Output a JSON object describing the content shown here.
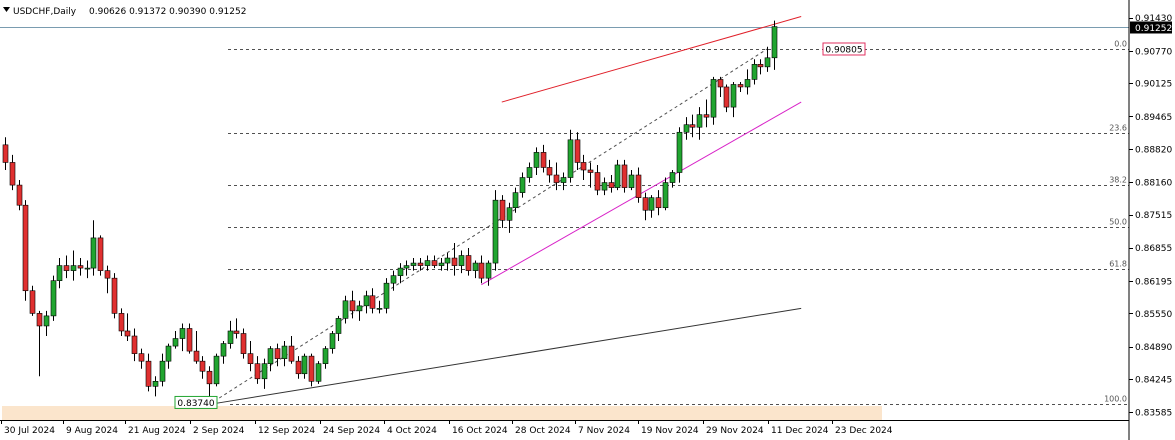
{
  "title": {
    "symbol_timeframe": "USDCHF,Daily",
    "ohlc": "0.90626 0.91372 0.90390 0.91252"
  },
  "icons": {
    "menu": "triangle-down-icon"
  },
  "colors": {
    "background": "#ffffff",
    "bull": "#21a530",
    "bear": "#e03030",
    "bid_line": "#7a9cb0",
    "upper_channel": "#e0202a",
    "lower_channel": "#d822c8",
    "trend_line": "#333333",
    "fib_line": "#505050",
    "high_label_border": "#e03060",
    "low_label_border": "#21a530",
    "price_tag_bg": "#000000"
  },
  "labels": {
    "high_price": "0.90805",
    "low_price": "0.83740",
    "current_price": "0.91252"
  },
  "chart_data": {
    "type": "candlestick",
    "y_axis_ticks": [
      "0.91430",
      "0.90770",
      "0.90125",
      "0.89465",
      "0.88820",
      "0.88160",
      "0.87515",
      "0.86855",
      "0.86195",
      "0.85550",
      "0.84890",
      "0.84245",
      "0.83585"
    ],
    "ylim": [
      0.8355,
      0.9158
    ],
    "x_axis_ticks": [
      "30 Jul 2024",
      "9 Aug 2024",
      "21 Aug 2024",
      "2 Sep 2024",
      "12 Sep 2024",
      "24 Sep 2024",
      "4 Oct 2024",
      "16 Oct 2024",
      "28 Oct 2024",
      "7 Nov 2024",
      "19 Nov 2024",
      "29 Nov 2024",
      "11 Dec 2024",
      "23 Dec 2024"
    ],
    "fibonacci_levels": [
      {
        "label": "0.0",
        "price": 0.90805
      },
      {
        "label": "23.6",
        "price": 0.89137
      },
      {
        "label": "38.2",
        "price": 0.88106
      },
      {
        "label": "50.0",
        "price": 0.87273
      },
      {
        "label": "61.8",
        "price": 0.86439
      },
      {
        "label": "100.0",
        "price": 0.8374
      }
    ],
    "candles": [
      {
        "date": "2024-07-29",
        "o": 0.889,
        "h": 0.8905,
        "l": 0.884,
        "c": 0.8855
      },
      {
        "date": "2024-07-30",
        "o": 0.8855,
        "h": 0.887,
        "l": 0.88,
        "c": 0.881
      },
      {
        "date": "2024-07-31",
        "o": 0.881,
        "h": 0.882,
        "l": 0.876,
        "c": 0.877
      },
      {
        "date": "2024-08-01",
        "o": 0.877,
        "h": 0.878,
        "l": 0.858,
        "c": 0.86
      },
      {
        "date": "2024-08-02",
        "o": 0.86,
        "h": 0.861,
        "l": 0.855,
        "c": 0.8555
      },
      {
        "date": "2024-08-05",
        "o": 0.8555,
        "h": 0.856,
        "l": 0.843,
        "c": 0.853
      },
      {
        "date": "2024-08-06",
        "o": 0.853,
        "h": 0.856,
        "l": 0.851,
        "c": 0.855
      },
      {
        "date": "2024-08-07",
        "o": 0.855,
        "h": 0.863,
        "l": 0.854,
        "c": 0.862
      },
      {
        "date": "2024-08-08",
        "o": 0.862,
        "h": 0.8665,
        "l": 0.8605,
        "c": 0.865
      },
      {
        "date": "2024-08-09",
        "o": 0.865,
        "h": 0.867,
        "l": 0.8625,
        "c": 0.864
      },
      {
        "date": "2024-08-12",
        "o": 0.864,
        "h": 0.868,
        "l": 0.862,
        "c": 0.865
      },
      {
        "date": "2024-08-13",
        "o": 0.865,
        "h": 0.8665,
        "l": 0.863,
        "c": 0.8645
      },
      {
        "date": "2024-08-14",
        "o": 0.8645,
        "h": 0.866,
        "l": 0.8625,
        "c": 0.8645
      },
      {
        "date": "2024-08-15",
        "o": 0.8645,
        "h": 0.874,
        "l": 0.863,
        "c": 0.8705
      },
      {
        "date": "2024-08-16",
        "o": 0.8705,
        "h": 0.871,
        "l": 0.863,
        "c": 0.864
      },
      {
        "date": "2024-08-19",
        "o": 0.864,
        "h": 0.865,
        "l": 0.8595,
        "c": 0.8625
      },
      {
        "date": "2024-08-20",
        "o": 0.8625,
        "h": 0.8635,
        "l": 0.8545,
        "c": 0.8555
      },
      {
        "date": "2024-08-21",
        "o": 0.8555,
        "h": 0.8565,
        "l": 0.851,
        "c": 0.852
      },
      {
        "date": "2024-08-22",
        "o": 0.852,
        "h": 0.8555,
        "l": 0.85,
        "c": 0.851
      },
      {
        "date": "2024-08-23",
        "o": 0.851,
        "h": 0.8525,
        "l": 0.846,
        "c": 0.8475
      },
      {
        "date": "2024-08-26",
        "o": 0.8475,
        "h": 0.8485,
        "l": 0.8445,
        "c": 0.846
      },
      {
        "date": "2024-08-27",
        "o": 0.846,
        "h": 0.8475,
        "l": 0.84,
        "c": 0.841
      },
      {
        "date": "2024-08-28",
        "o": 0.841,
        "h": 0.843,
        "l": 0.839,
        "c": 0.842
      },
      {
        "date": "2024-08-29",
        "o": 0.842,
        "h": 0.8475,
        "l": 0.841,
        "c": 0.846
      },
      {
        "date": "2024-08-30",
        "o": 0.846,
        "h": 0.8495,
        "l": 0.8445,
        "c": 0.849
      },
      {
        "date": "2024-09-02",
        "o": 0.849,
        "h": 0.852,
        "l": 0.8485,
        "c": 0.8505
      },
      {
        "date": "2024-09-03",
        "o": 0.8505,
        "h": 0.8535,
        "l": 0.848,
        "c": 0.8525
      },
      {
        "date": "2024-09-04",
        "o": 0.8525,
        "h": 0.8535,
        "l": 0.8475,
        "c": 0.848
      },
      {
        "date": "2024-09-05",
        "o": 0.848,
        "h": 0.852,
        "l": 0.8455,
        "c": 0.846
      },
      {
        "date": "2024-09-06",
        "o": 0.846,
        "h": 0.847,
        "l": 0.8425,
        "c": 0.844
      },
      {
        "date": "2024-09-09",
        "o": 0.844,
        "h": 0.845,
        "l": 0.8374,
        "c": 0.8415
      },
      {
        "date": "2024-09-10",
        "o": 0.8415,
        "h": 0.8475,
        "l": 0.841,
        "c": 0.847
      },
      {
        "date": "2024-09-11",
        "o": 0.847,
        "h": 0.85,
        "l": 0.8455,
        "c": 0.8495
      },
      {
        "date": "2024-09-12",
        "o": 0.8495,
        "h": 0.854,
        "l": 0.8485,
        "c": 0.852
      },
      {
        "date": "2024-09-13",
        "o": 0.852,
        "h": 0.8545,
        "l": 0.8505,
        "c": 0.8515
      },
      {
        "date": "2024-09-16",
        "o": 0.8515,
        "h": 0.8525,
        "l": 0.8465,
        "c": 0.8475
      },
      {
        "date": "2024-09-17",
        "o": 0.8475,
        "h": 0.85,
        "l": 0.844,
        "c": 0.8455
      },
      {
        "date": "2024-09-18",
        "o": 0.8455,
        "h": 0.847,
        "l": 0.8415,
        "c": 0.8425
      },
      {
        "date": "2024-09-19",
        "o": 0.8425,
        "h": 0.8465,
        "l": 0.8405,
        "c": 0.8455
      },
      {
        "date": "2024-09-20",
        "o": 0.8455,
        "h": 0.849,
        "l": 0.844,
        "c": 0.8485
      },
      {
        "date": "2024-09-23",
        "o": 0.8485,
        "h": 0.8495,
        "l": 0.845,
        "c": 0.8465
      },
      {
        "date": "2024-09-24",
        "o": 0.8465,
        "h": 0.85,
        "l": 0.845,
        "c": 0.849
      },
      {
        "date": "2024-09-25",
        "o": 0.849,
        "h": 0.851,
        "l": 0.8455,
        "c": 0.846
      },
      {
        "date": "2024-09-26",
        "o": 0.846,
        "h": 0.847,
        "l": 0.8425,
        "c": 0.8435
      },
      {
        "date": "2024-09-27",
        "o": 0.8435,
        "h": 0.8475,
        "l": 0.8425,
        "c": 0.847
      },
      {
        "date": "2024-09-30",
        "o": 0.847,
        "h": 0.8475,
        "l": 0.841,
        "c": 0.842
      },
      {
        "date": "2024-10-01",
        "o": 0.842,
        "h": 0.846,
        "l": 0.8415,
        "c": 0.8455
      },
      {
        "date": "2024-10-02",
        "o": 0.8455,
        "h": 0.849,
        "l": 0.8445,
        "c": 0.8485
      },
      {
        "date": "2024-10-03",
        "o": 0.8485,
        "h": 0.852,
        "l": 0.8475,
        "c": 0.8515
      },
      {
        "date": "2024-10-04",
        "o": 0.8515,
        "h": 0.855,
        "l": 0.85,
        "c": 0.8545
      },
      {
        "date": "2024-10-07",
        "o": 0.8545,
        "h": 0.859,
        "l": 0.8535,
        "c": 0.858
      },
      {
        "date": "2024-10-08",
        "o": 0.858,
        "h": 0.86,
        "l": 0.8545,
        "c": 0.856
      },
      {
        "date": "2024-10-09",
        "o": 0.856,
        "h": 0.858,
        "l": 0.854,
        "c": 0.857
      },
      {
        "date": "2024-10-10",
        "o": 0.857,
        "h": 0.86,
        "l": 0.8555,
        "c": 0.859
      },
      {
        "date": "2024-10-11",
        "o": 0.859,
        "h": 0.8605,
        "l": 0.8555,
        "c": 0.8565
      },
      {
        "date": "2024-10-14",
        "o": 0.8565,
        "h": 0.858,
        "l": 0.8555,
        "c": 0.8565
      },
      {
        "date": "2024-10-15",
        "o": 0.8565,
        "h": 0.8625,
        "l": 0.8555,
        "c": 0.8615
      },
      {
        "date": "2024-10-16",
        "o": 0.8615,
        "h": 0.864,
        "l": 0.86,
        "c": 0.863
      },
      {
        "date": "2024-10-17",
        "o": 0.863,
        "h": 0.8655,
        "l": 0.8615,
        "c": 0.8645
      },
      {
        "date": "2024-10-18",
        "o": 0.8645,
        "h": 0.866,
        "l": 0.863,
        "c": 0.865
      },
      {
        "date": "2024-10-21",
        "o": 0.865,
        "h": 0.8665,
        "l": 0.864,
        "c": 0.8655
      },
      {
        "date": "2024-10-22",
        "o": 0.8655,
        "h": 0.8665,
        "l": 0.864,
        "c": 0.865
      },
      {
        "date": "2024-10-23",
        "o": 0.865,
        "h": 0.867,
        "l": 0.864,
        "c": 0.866
      },
      {
        "date": "2024-10-24",
        "o": 0.866,
        "h": 0.867,
        "l": 0.8645,
        "c": 0.865
      },
      {
        "date": "2024-10-25",
        "o": 0.865,
        "h": 0.8665,
        "l": 0.864,
        "c": 0.8655
      },
      {
        "date": "2024-10-28",
        "o": 0.8655,
        "h": 0.8675,
        "l": 0.864,
        "c": 0.8665
      },
      {
        "date": "2024-10-29",
        "o": 0.8665,
        "h": 0.8695,
        "l": 0.863,
        "c": 0.865
      },
      {
        "date": "2024-10-30",
        "o": 0.865,
        "h": 0.868,
        "l": 0.8635,
        "c": 0.867
      },
      {
        "date": "2024-10-31",
        "o": 0.867,
        "h": 0.8685,
        "l": 0.863,
        "c": 0.864
      },
      {
        "date": "2024-11-01",
        "o": 0.864,
        "h": 0.866,
        "l": 0.8625,
        "c": 0.8655
      },
      {
        "date": "2024-11-04",
        "o": 0.8655,
        "h": 0.867,
        "l": 0.8615,
        "c": 0.8625
      },
      {
        "date": "2024-11-05",
        "o": 0.8625,
        "h": 0.866,
        "l": 0.861,
        "c": 0.8655
      },
      {
        "date": "2024-11-06",
        "o": 0.8655,
        "h": 0.88,
        "l": 0.864,
        "c": 0.878
      },
      {
        "date": "2024-11-07",
        "o": 0.878,
        "h": 0.879,
        "l": 0.8725,
        "c": 0.874
      },
      {
        "date": "2024-11-08",
        "o": 0.874,
        "h": 0.8775,
        "l": 0.8715,
        "c": 0.8765
      },
      {
        "date": "2024-11-11",
        "o": 0.8765,
        "h": 0.8805,
        "l": 0.8755,
        "c": 0.8795
      },
      {
        "date": "2024-11-12",
        "o": 0.8795,
        "h": 0.8835,
        "l": 0.8785,
        "c": 0.8825
      },
      {
        "date": "2024-11-13",
        "o": 0.8825,
        "h": 0.8855,
        "l": 0.8815,
        "c": 0.8845
      },
      {
        "date": "2024-11-14",
        "o": 0.8845,
        "h": 0.8885,
        "l": 0.883,
        "c": 0.8875
      },
      {
        "date": "2024-11-15",
        "o": 0.8875,
        "h": 0.889,
        "l": 0.8835,
        "c": 0.8845
      },
      {
        "date": "2024-11-18",
        "o": 0.8845,
        "h": 0.886,
        "l": 0.8815,
        "c": 0.883
      },
      {
        "date": "2024-11-19",
        "o": 0.883,
        "h": 0.8855,
        "l": 0.88,
        "c": 0.8815
      },
      {
        "date": "2024-11-20",
        "o": 0.8815,
        "h": 0.8835,
        "l": 0.88,
        "c": 0.8825
      },
      {
        "date": "2024-11-21",
        "o": 0.8825,
        "h": 0.892,
        "l": 0.8815,
        "c": 0.89
      },
      {
        "date": "2024-11-22",
        "o": 0.89,
        "h": 0.8915,
        "l": 0.884,
        "c": 0.8855
      },
      {
        "date": "2024-11-25",
        "o": 0.8855,
        "h": 0.887,
        "l": 0.882,
        "c": 0.884
      },
      {
        "date": "2024-11-26",
        "o": 0.884,
        "h": 0.8855,
        "l": 0.8805,
        "c": 0.8835
      },
      {
        "date": "2024-11-27",
        "o": 0.8835,
        "h": 0.885,
        "l": 0.879,
        "c": 0.88
      },
      {
        "date": "2024-11-28",
        "o": 0.88,
        "h": 0.8825,
        "l": 0.879,
        "c": 0.8815
      },
      {
        "date": "2024-11-29",
        "o": 0.8815,
        "h": 0.883,
        "l": 0.8795,
        "c": 0.8805
      },
      {
        "date": "2024-12-02",
        "o": 0.8805,
        "h": 0.886,
        "l": 0.88,
        "c": 0.885
      },
      {
        "date": "2024-12-03",
        "o": 0.885,
        "h": 0.886,
        "l": 0.8795,
        "c": 0.8805
      },
      {
        "date": "2024-12-04",
        "o": 0.8805,
        "h": 0.884,
        "l": 0.88,
        "c": 0.883
      },
      {
        "date": "2024-12-05",
        "o": 0.883,
        "h": 0.8845,
        "l": 0.8775,
        "c": 0.8785
      },
      {
        "date": "2024-12-06",
        "o": 0.8785,
        "h": 0.8795,
        "l": 0.874,
        "c": 0.876
      },
      {
        "date": "2024-12-09",
        "o": 0.876,
        "h": 0.879,
        "l": 0.8745,
        "c": 0.8785
      },
      {
        "date": "2024-12-10",
        "o": 0.8785,
        "h": 0.88,
        "l": 0.875,
        "c": 0.8765
      },
      {
        "date": "2024-12-11",
        "o": 0.8765,
        "h": 0.8825,
        "l": 0.876,
        "c": 0.8815
      },
      {
        "date": "2024-12-12",
        "o": 0.8815,
        "h": 0.884,
        "l": 0.8805,
        "c": 0.8835
      },
      {
        "date": "2024-12-13",
        "o": 0.8835,
        "h": 0.8925,
        "l": 0.8815,
        "c": 0.8915
      },
      {
        "date": "2024-12-16",
        "o": 0.8915,
        "h": 0.8945,
        "l": 0.89,
        "c": 0.893
      },
      {
        "date": "2024-12-17",
        "o": 0.893,
        "h": 0.895,
        "l": 0.8905,
        "c": 0.8925
      },
      {
        "date": "2024-12-18",
        "o": 0.8925,
        "h": 0.8965,
        "l": 0.89,
        "c": 0.895
      },
      {
        "date": "2024-12-19",
        "o": 0.895,
        "h": 0.898,
        "l": 0.8925,
        "c": 0.8945
      },
      {
        "date": "2024-12-20",
        "o": 0.8945,
        "h": 0.9025,
        "l": 0.893,
        "c": 0.902
      },
      {
        "date": "2024-12-23",
        "o": 0.902,
        "h": 0.9025,
        "l": 0.8985,
        "c": 0.9005
      },
      {
        "date": "2024-12-24",
        "o": 0.9005,
        "h": 0.901,
        "l": 0.8955,
        "c": 0.8965
      },
      {
        "date": "2024-12-26",
        "o": 0.8965,
        "h": 0.9015,
        "l": 0.8945,
        "c": 0.901
      },
      {
        "date": "2024-12-27",
        "o": 0.901,
        "h": 0.9015,
        "l": 0.8995,
        "c": 0.9005
      },
      {
        "date": "2024-12-30",
        "o": 0.9005,
        "h": 0.904,
        "l": 0.899,
        "c": 0.902
      },
      {
        "date": "2024-12-31",
        "o": 0.902,
        "h": 0.906,
        "l": 0.901,
        "c": 0.905
      },
      {
        "date": "2025-01-01",
        "o": 0.905,
        "h": 0.906,
        "l": 0.903,
        "c": 0.9045
      },
      {
        "date": "2025-01-02",
        "o": 0.9045,
        "h": 0.9085,
        "l": 0.9035,
        "c": 0.9063
      },
      {
        "date": "2025-01-03",
        "o": 0.9063,
        "h": 0.9137,
        "l": 0.9039,
        "c": 0.9125
      }
    ],
    "trend_lines": [
      {
        "name": "upper channel",
        "from": {
          "date": "2024-11-07",
          "price": 0.8975
        },
        "to": {
          "date": "2025-01-09",
          "price": 0.9145
        }
      },
      {
        "name": "lower channel",
        "from": {
          "date": "2024-11-04",
          "price": 0.8612
        },
        "to": {
          "date": "2025-01-09",
          "price": 0.8975
        }
      },
      {
        "name": "long trend",
        "from": {
          "date": "2024-09-09",
          "price": 0.8374
        },
        "to": {
          "date": "2025-01-09",
          "price": 0.8565
        }
      },
      {
        "name": "fib anchor",
        "from": {
          "date": "2024-09-09",
          "price": 0.8374
        },
        "to": {
          "date": "2025-01-02",
          "price": 0.90805
        }
      }
    ]
  }
}
